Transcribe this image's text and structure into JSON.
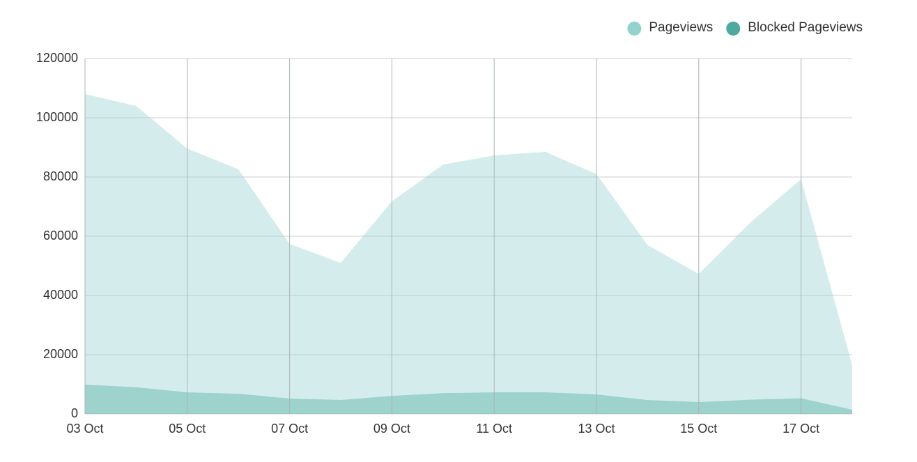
{
  "chart_data": {
    "type": "area",
    "categories": [
      "03 Oct",
      null,
      "05 Oct",
      null,
      "07 Oct",
      null,
      "09 Oct",
      null,
      "11 Oct",
      null,
      "13 Oct",
      null,
      "15 Oct",
      null,
      "17 Oct",
      null
    ],
    "series": [
      {
        "name": "Pageviews",
        "color": "#93d3cf",
        "values": [
          108000,
          104000,
          89600,
          82600,
          57400,
          51000,
          71800,
          84200,
          87300,
          88500,
          81000,
          57000,
          47300,
          64500,
          79300,
          16500
        ]
      },
      {
        "name": "Blocked Pageviews",
        "color": "#4ea9a0",
        "values": [
          9900,
          9000,
          7300,
          6800,
          5200,
          4700,
          6100,
          7000,
          7300,
          7300,
          6600,
          4700,
          4000,
          4800,
          5300,
          1400
        ]
      }
    ],
    "ylim": [
      0,
      120000
    ],
    "yticks": [
      0,
      20000,
      40000,
      60000,
      80000,
      100000,
      120000
    ],
    "grid": true,
    "legend": "top-right"
  }
}
